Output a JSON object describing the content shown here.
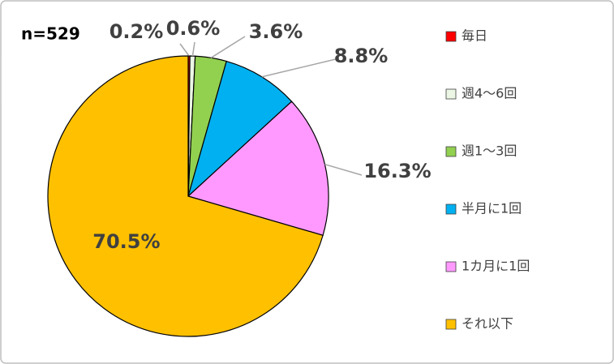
{
  "chart_data": {
    "type": "pie",
    "annotation": "n=529",
    "categories": [
      "毎日",
      "週4～6回",
      "週1～3回",
      "半月に1回",
      "1カ月に1回",
      "それ以下"
    ],
    "values": [
      0.2,
      0.6,
      3.6,
      8.8,
      16.3,
      70.5
    ],
    "value_labels": [
      "0.2%",
      "0.6%",
      "3.6%",
      "8.8%",
      "16.3%",
      "70.5%"
    ],
    "colors": [
      "#ff0000",
      "#ebf6e4",
      "#92d050",
      "#00b0f0",
      "#ff99ff",
      "#ffc000"
    ],
    "legend": "right"
  }
}
